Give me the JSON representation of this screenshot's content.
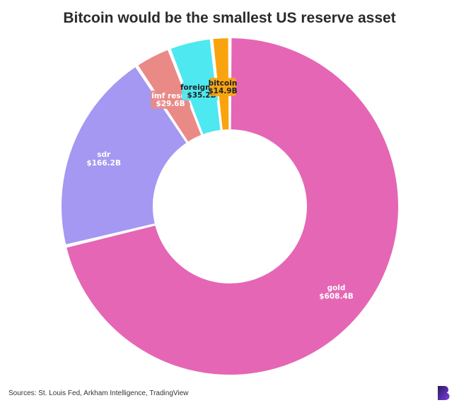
{
  "title": "Bitcoin would be the smallest US reserve asset",
  "source": "Sources: St. Louis Fed, Arkham Intelligence, TradingView",
  "logo_icon": "brand-logo-icon",
  "chart_data": {
    "type": "pie",
    "donut": true,
    "title": "Bitcoin would be the smallest US reserve asset",
    "slices": [
      {
        "name": "gold",
        "label": "gold",
        "value_label": "$608.4B",
        "value": 608.4,
        "color": "#e566b4"
      },
      {
        "name": "sdr",
        "label": "sdr",
        "value_label": "$166.2B",
        "value": 166.2,
        "color": "#a498f2"
      },
      {
        "name": "imf reserve",
        "label": "imf reser",
        "value_label": "$29.6B",
        "value": 29.6,
        "color": "#ea8a87"
      },
      {
        "name": "foreign currency",
        "label": "foreign cu",
        "value_label": "$35.2B",
        "value": 35.2,
        "color": "#4ee8f0"
      },
      {
        "name": "bitcoin",
        "label": "bitcoin",
        "value_label": "$14.9B",
        "value": 14.9,
        "color": "#f9a40f"
      }
    ]
  }
}
